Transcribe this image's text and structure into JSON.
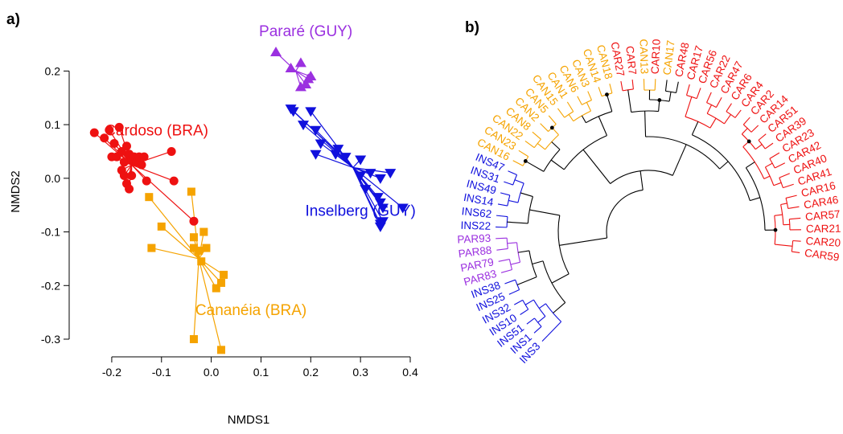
{
  "panel_labels": {
    "a": "a)",
    "b": "b)"
  },
  "colors": {
    "Cardoso": "#ee1111",
    "Cananeia": "#f5a300",
    "Parare": "#9b30e0",
    "Inselberg": "#1010dd",
    "axis": "#000000"
  },
  "chart_data": [
    {
      "type": "scatter",
      "panel": "a)",
      "title": "",
      "xlabel": "NMDS1",
      "ylabel": "NMDS2",
      "xlim": [
        -0.25,
        0.4
      ],
      "ylim": [
        -0.3,
        0.25
      ],
      "xticks": [
        -0.2,
        -0.1,
        0.0,
        0.1,
        0.2,
        0.3,
        0.4
      ],
      "xtick_labels": [
        "-0.2",
        "-0.1",
        "0.0",
        "0.1",
        "0.2",
        "0.3",
        "0.4"
      ],
      "yticks": [
        -0.3,
        -0.2,
        -0.1,
        0.0,
        0.1,
        0.2
      ],
      "ytick_labels": [
        "-0.3",
        "-0.2",
        "-0.1",
        "0.0",
        "0.1",
        "0.2"
      ],
      "grid": false,
      "series": [
        {
          "name": "Cardoso (BRA)",
          "color": "#ee1111",
          "marker": "circle",
          "centroid": [
            -0.16,
            0.025
          ],
          "label_at": [
            -0.11,
            0.08
          ],
          "points": [
            [
              -0.235,
              0.085
            ],
            [
              -0.215,
              0.075
            ],
            [
              -0.205,
              0.09
            ],
            [
              -0.195,
              0.065
            ],
            [
              -0.185,
              0.095
            ],
            [
              -0.2,
              0.04
            ],
            [
              -0.19,
              0.04
            ],
            [
              -0.18,
              0.05
            ],
            [
              -0.175,
              0.03
            ],
            [
              -0.17,
              0.06
            ],
            [
              -0.165,
              0.045
            ],
            [
              -0.16,
              0.035
            ],
            [
              -0.155,
              0.04
            ],
            [
              -0.15,
              0.03
            ],
            [
              -0.145,
              0.04
            ],
            [
              -0.14,
              0.025
            ],
            [
              -0.135,
              0.04
            ],
            [
              -0.18,
              0.015
            ],
            [
              -0.175,
              0.005
            ],
            [
              -0.17,
              -0.01
            ],
            [
              -0.16,
              0.005
            ],
            [
              -0.13,
              -0.005
            ],
            [
              -0.165,
              -0.02
            ],
            [
              -0.08,
              0.05
            ],
            [
              -0.075,
              -0.005
            ],
            [
              -0.035,
              -0.08
            ]
          ]
        },
        {
          "name": "Cananéia (BRA)",
          "color": "#f5a300",
          "marker": "square",
          "centroid": [
            -0.025,
            -0.15
          ],
          "label_at": [
            0.08,
            -0.255
          ],
          "points": [
            [
              -0.125,
              -0.035
            ],
            [
              -0.04,
              -0.025
            ],
            [
              -0.1,
              -0.09
            ],
            [
              -0.12,
              -0.13
            ],
            [
              -0.035,
              -0.11
            ],
            [
              -0.035,
              -0.13
            ],
            [
              -0.025,
              -0.135
            ],
            [
              -0.015,
              -0.1
            ],
            [
              -0.01,
              -0.13
            ],
            [
              -0.02,
              -0.155
            ],
            [
              -0.035,
              -0.3
            ],
            [
              0.02,
              -0.32
            ],
            [
              0.01,
              -0.205
            ],
            [
              0.02,
              -0.195
            ],
            [
              0.025,
              -0.18
            ]
          ]
        },
        {
          "name": "Pararé (GUY)",
          "color": "#9b30e0",
          "marker": "triangle-up",
          "centroid": [
            0.17,
            0.2
          ],
          "label_at": [
            0.19,
            0.265
          ],
          "points": [
            [
              0.13,
              0.235
            ],
            [
              0.16,
              0.205
            ],
            [
              0.18,
              0.215
            ],
            [
              0.2,
              0.19
            ],
            [
              0.195,
              0.185
            ],
            [
              0.18,
              0.17
            ],
            [
              0.19,
              0.175
            ]
          ]
        },
        {
          "name": "Inselberg (GUY)",
          "color": "#1010dd",
          "marker": "triangle-down",
          "centroid": [
            0.285,
            0.02
          ],
          "label_at": [
            0.3,
            -0.07
          ],
          "points": [
            [
              0.16,
              0.13
            ],
            [
              0.165,
              0.125
            ],
            [
              0.2,
              0.125
            ],
            [
              0.185,
              0.1
            ],
            [
              0.21,
              0.09
            ],
            [
              0.22,
              0.065
            ],
            [
              0.21,
              0.045
            ],
            [
              0.25,
              0.045
            ],
            [
              0.255,
              0.055
            ],
            [
              0.27,
              0.04
            ],
            [
              0.3,
              0.035
            ],
            [
              0.32,
              0.01
            ],
            [
              0.3,
              0.005
            ],
            [
              0.31,
              -0.02
            ],
            [
              0.36,
              0.01
            ],
            [
              0.34,
              0.0
            ],
            [
              0.335,
              -0.035
            ],
            [
              0.34,
              -0.045
            ],
            [
              0.345,
              -0.055
            ],
            [
              0.385,
              -0.055
            ],
            [
              0.34,
              -0.09
            ],
            [
              0.34,
              -0.085
            ],
            [
              0.345,
              -0.08
            ]
          ]
        }
      ]
    },
    {
      "type": "dendrogram",
      "panel": "b)",
      "layout": "circular",
      "leaves": [
        {
          "name": "CAR59",
          "group": "Cardoso"
        },
        {
          "name": "CAR20",
          "group": "Cardoso"
        },
        {
          "name": "CAR21",
          "group": "Cardoso"
        },
        {
          "name": "CAR57",
          "group": "Cardoso"
        },
        {
          "name": "CAR46",
          "group": "Cardoso"
        },
        {
          "name": "CAR16",
          "group": "Cardoso"
        },
        {
          "name": "CAR41",
          "group": "Cardoso"
        },
        {
          "name": "CAR40",
          "group": "Cardoso"
        },
        {
          "name": "CAR42",
          "group": "Cardoso"
        },
        {
          "name": "CAR23",
          "group": "Cardoso"
        },
        {
          "name": "CAR39",
          "group": "Cardoso"
        },
        {
          "name": "CAR51",
          "group": "Cardoso"
        },
        {
          "name": "CAR14",
          "group": "Cardoso"
        },
        {
          "name": "CAR2",
          "group": "Cardoso"
        },
        {
          "name": "CAR4",
          "group": "Cardoso"
        },
        {
          "name": "CAR6",
          "group": "Cardoso"
        },
        {
          "name": "CAR47",
          "group": "Cardoso"
        },
        {
          "name": "CAR22",
          "group": "Cardoso"
        },
        {
          "name": "CAR56",
          "group": "Cardoso"
        },
        {
          "name": "CAR17",
          "group": "Cardoso"
        },
        {
          "name": "CAR48",
          "group": "Cardoso"
        },
        {
          "name": "CAN17",
          "group": "Cananeia"
        },
        {
          "name": "CAR10",
          "group": "Cardoso"
        },
        {
          "name": "CAN13",
          "group": "Cananeia"
        },
        {
          "name": "CAR7",
          "group": "Cardoso"
        },
        {
          "name": "CAR27",
          "group": "Cardoso"
        },
        {
          "name": "CAN18",
          "group": "Cananeia"
        },
        {
          "name": "CAN14",
          "group": "Cananeia"
        },
        {
          "name": "CAN3",
          "group": "Cananeia"
        },
        {
          "name": "CAN6",
          "group": "Cananeia"
        },
        {
          "name": "CAN1",
          "group": "Cananeia"
        },
        {
          "name": "CAN15",
          "group": "Cananeia"
        },
        {
          "name": "CAN5",
          "group": "Cananeia"
        },
        {
          "name": "CAN2",
          "group": "Cananeia"
        },
        {
          "name": "CAN8",
          "group": "Cananeia"
        },
        {
          "name": "CAN22",
          "group": "Cananeia"
        },
        {
          "name": "CAN23",
          "group": "Cananeia"
        },
        {
          "name": "CAN16",
          "group": "Cananeia"
        },
        {
          "name": "INS47",
          "group": "Inselberg"
        },
        {
          "name": "INS31",
          "group": "Inselberg"
        },
        {
          "name": "INS49",
          "group": "Inselberg"
        },
        {
          "name": "INS14",
          "group": "Inselberg"
        },
        {
          "name": "INS62",
          "group": "Inselberg"
        },
        {
          "name": "INS22",
          "group": "Inselberg"
        },
        {
          "name": "PAR93",
          "group": "Parare"
        },
        {
          "name": "PAR88",
          "group": "Parare"
        },
        {
          "name": "PAR79",
          "group": "Parare"
        },
        {
          "name": "PAR83",
          "group": "Parare"
        },
        {
          "name": "INS38",
          "group": "Inselberg"
        },
        {
          "name": "INS25",
          "group": "Inselberg"
        },
        {
          "name": "INS32",
          "group": "Inselberg"
        },
        {
          "name": "INS10",
          "group": "Inselberg"
        },
        {
          "name": "INS51",
          "group": "Inselberg"
        },
        {
          "name": "INS1",
          "group": "Inselberg"
        },
        {
          "name": "INS3",
          "group": "Inselberg"
        }
      ]
    }
  ]
}
